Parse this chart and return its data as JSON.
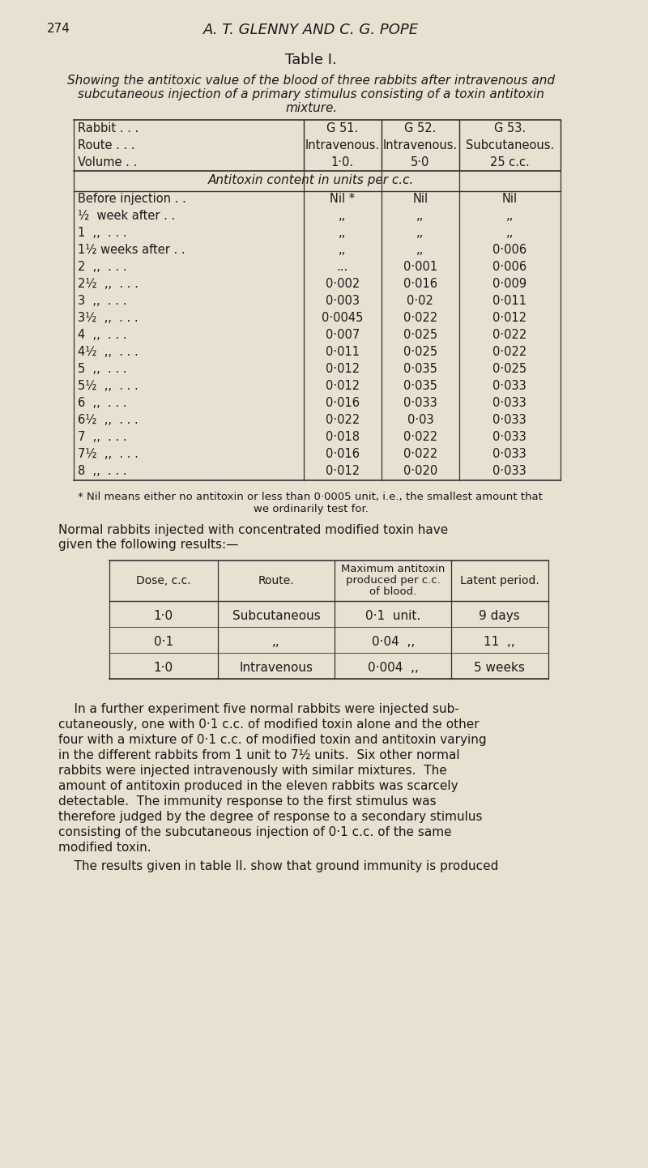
{
  "bg_color": "#e8e0d0",
  "page_number": "274",
  "header": "A. T. GLENNY AND C. G. POPE",
  "table1_title": "Table I.",
  "table1_subtitle": "Showing the antitoxic value of the blood of three rabbits after intravenous and\n    subcutaneous injection of a primary stimulus consisting of a toxin antitoxin\n    mixture.",
  "table1_header_rows": [
    [
      "Rabbit . . .",
      "G 51.",
      "G 52.",
      "G 53."
    ],
    [
      "Route . . .",
      "Intravenous.",
      "Intravenous.",
      "Subcutaneous."
    ],
    [
      "Volume . .",
      "1·0.",
      "5·0",
      "25 c.c."
    ]
  ],
  "table1_span_row": "Antitoxin content in units per c.c.",
  "table1_data_rows": [
    [
      "Before injection . .",
      "Nil *",
      "Nil",
      "Nil"
    ],
    [
      "½  week after . .",
      ",,",
      ",,",
      ",,"
    ],
    [
      "1  ,,  . . .",
      ",,",
      ",,",
      ",,"
    ],
    [
      "1½ weeks after . .",
      ",,",
      ",,",
      "0·006"
    ],
    [
      "2  ,,  . . .",
      "...",
      "0·001",
      "0·006"
    ],
    [
      "2½  ,,  . . .",
      "0·002",
      "0·016",
      "0·009"
    ],
    [
      "3  ,,  . . .",
      "0·003",
      "0·02",
      "0·011"
    ],
    [
      "3½  ,,  . . .",
      "0·0045",
      "0·022",
      "0·012"
    ],
    [
      "4  ,,  . . .",
      "0·007",
      "0·025",
      "0·022"
    ],
    [
      "4½  ,,  . . .",
      "0·011",
      "0·025",
      "0·022"
    ],
    [
      "5  ,,  . . .",
      "0·012",
      "0·035",
      "0·025"
    ],
    [
      "5½  ,,  . . .",
      "0·012",
      "0·035",
      "0·033"
    ],
    [
      "6  ,,  . . .",
      "0·016",
      "0·033",
      "0·033"
    ],
    [
      "6½  ,,  . . .",
      "0·022",
      "0·03",
      "0·033"
    ],
    [
      "7  ,,  . . .",
      "0·018",
      "0·022",
      "0·033"
    ],
    [
      "7½  ,,  . . .",
      "0·016",
      "0·022",
      "0·033"
    ],
    [
      "8  ,,  . . .",
      "0·012",
      "0·020",
      "0·033"
    ]
  ],
  "table1_footnote": "* Nil means either no antitoxin or less than 0·0005 unit, i.e., the smallest amount that\n                 we ordinarily test for.",
  "para1": "Normal rabbits injected with concentrated modified toxin have\ngiven the following results:—",
  "table2_header_rows": [
    [
      "Dose, c.c.",
      "Route.",
      "Maximum antitoxin\nproduced per c.c.\nof blood.",
      "Latent period."
    ]
  ],
  "table2_data_rows": [
    [
      "1·0",
      "Subcutaneous",
      "0·1  unit.",
      "9 days"
    ],
    [
      "0·1",
      ",,",
      "0·04  ,,",
      "11  ,,"
    ],
    [
      "1·0",
      "Intravenous",
      "0·004  ,,",
      "5 weeks"
    ]
  ],
  "para2": "    In a further experiment five normal rabbits were injected sub-\ncutaneously, one with 0·1 c.c. of modified toxin alone and the other\nfour with a mixture of 0·1 c.c. of modified toxin and antitoxin varying\nin the different rabbits from 1 unit to 7½ units.  Six other normal\nrabbits were injected intravenously with similar mixtures.  The\namount of antitoxin produced in the eleven rabbits was scarcely\ndetectable.  The immunity response to the first stimulus was\ntherefore judged by the degree of response to a secondary stimulus\nconsisting of the subcutaneous injection of 0·1 c.c. of the same\nmodified toxin.",
  "para3": "    The results given in table II. show that ground immunity is produced"
}
